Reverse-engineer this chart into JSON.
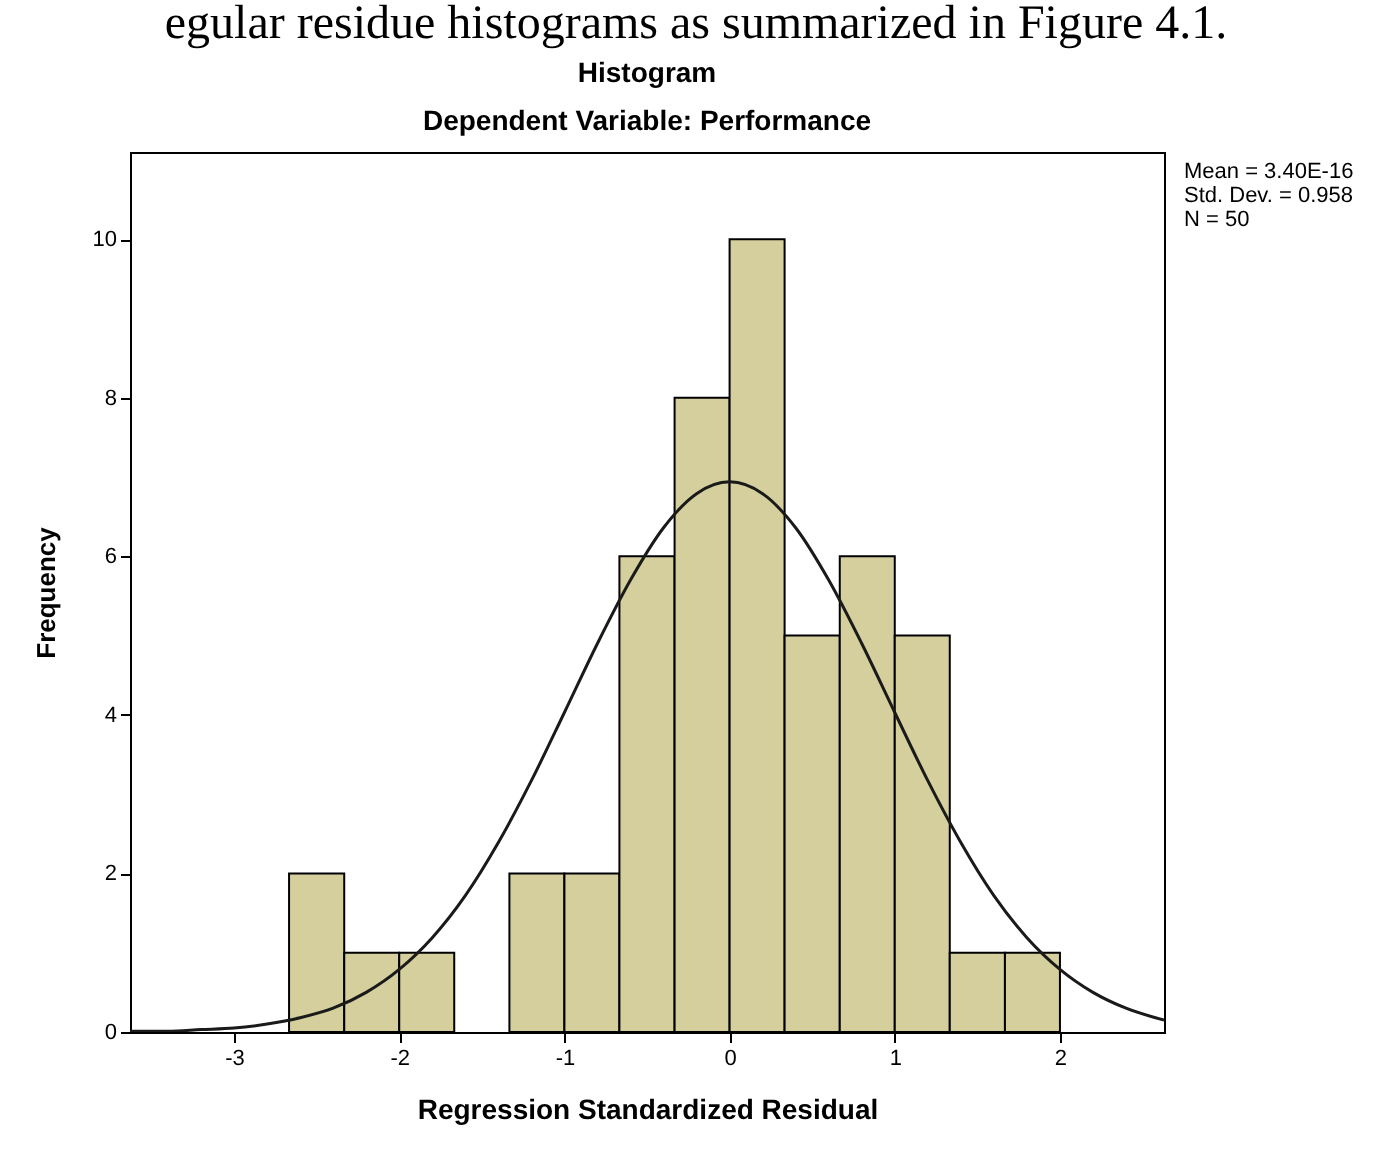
{
  "chart_data": {
    "type": "histogram",
    "title": "Histogram",
    "subtitle": "Dependent Variable: Performance",
    "xlabel": "Regression Standardized Residual",
    "ylabel": "Frequency",
    "annotations": [
      "egular residue histograms as summarized in Figure 4.1.",
      "Mean = 3.40E-16",
      "Std. Dev. = 0.958",
      "N = 50"
    ],
    "bins": [
      -2.667,
      -2.333,
      -2,
      -1.667,
      -1.333,
      -1,
      -0.667,
      -0.333,
      0,
      0.333,
      0.667,
      1,
      1.333,
      1.667,
      2
    ],
    "values": [
      2,
      1,
      1,
      0,
      2,
      2,
      6,
      8,
      10,
      5,
      6,
      5,
      1,
      1
    ],
    "color": "#d4cf9c",
    "series": [
      {
        "type": "line",
        "color": "#1a1a1a",
        "x": [
          -3.63,
          -3.4,
          -3.2,
          -3.0,
          -2.8,
          -2.6,
          -2.4,
          -2.2,
          -2.0,
          -1.8,
          -1.6,
          -1.4,
          -1.2,
          -1.0,
          -0.8,
          -0.6,
          -0.4,
          -0.2,
          0,
          0.2,
          0.4,
          0.6,
          0.8,
          1.0,
          1.2,
          1.4,
          1.6,
          1.8,
          2.0,
          2.2,
          2.4,
          2.63
        ],
        "values": [
          0.01,
          0.01,
          0.03,
          0.05,
          0.1,
          0.18,
          0.3,
          0.5,
          0.79,
          1.19,
          1.72,
          2.39,
          3.17,
          4.03,
          4.9,
          5.7,
          6.36,
          6.79,
          6.94,
          6.79,
          6.36,
          5.7,
          4.9,
          4.03,
          3.17,
          2.39,
          1.72,
          1.19,
          0.79,
          0.5,
          0.3,
          0.15
        ]
      }
    ],
    "xlim": [
      -3.63,
      2.63
    ],
    "ylim": [
      0,
      11.1
    ],
    "xticks": [
      -3,
      -2,
      -1,
      0,
      1,
      2
    ],
    "yticks": [
      0,
      2,
      4,
      6,
      8,
      10
    ]
  }
}
